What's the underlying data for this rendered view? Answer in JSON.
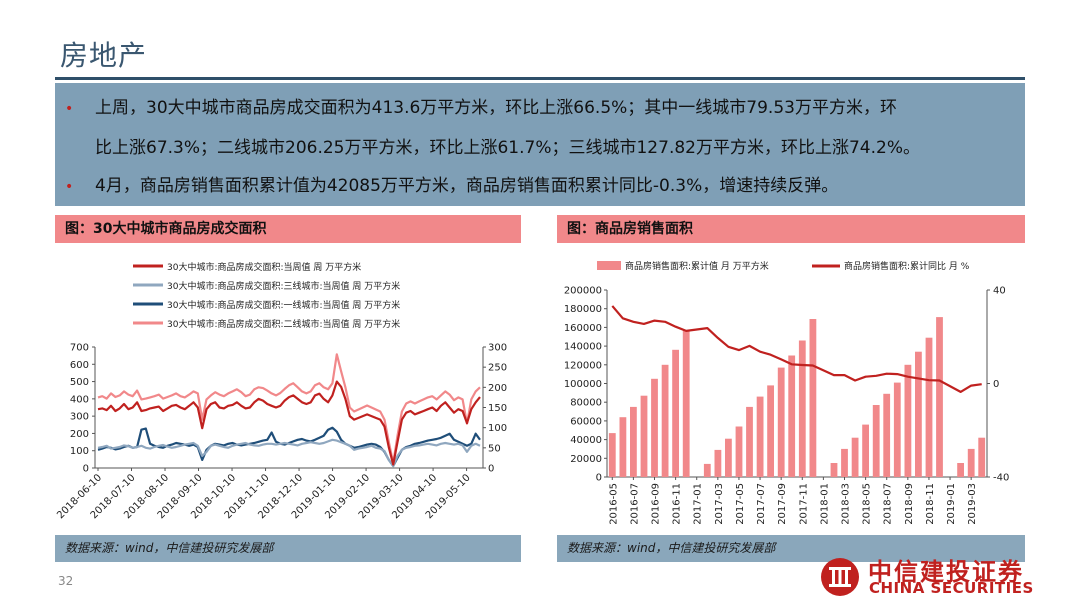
{
  "page": {
    "title": "房地产",
    "bullet1_line1": "上周，30大中城市商品房成交面积为413.6万平方米，环比上涨66.5%；其中一线城市79.53万平方米，环",
    "bullet1_line2": "比上涨67.3%；二线城市206.25万平方米，环比上涨61.7%；三线城市127.82万平方米，环比上涨74.2%。",
    "bullet2": "4月，商品房销售面积累计值为42085万平方米，商品房销售面积累计同比-0.3%，增速持续反弹。",
    "bullet_marker": "•",
    "page_number": "32",
    "logo_cn": "中信建投证券",
    "logo_en": "CHINA SECURITIES",
    "accent_color": "#c0211f"
  },
  "chart_data": [
    {
      "type": "line",
      "header": "图：30大中城市商品房成交面积",
      "source": "数据来源：wind，中信建投研究发展部",
      "x_tick_labels": [
        "2018-06-10",
        "2018-07-10",
        "2018-08-10",
        "2018-09-10",
        "2018-10-10",
        "2018-11-10",
        "2018-12-10",
        "2019-01-10",
        "2019-02-10",
        "2019-03-10",
        "2019-04-10",
        "2019-05-10"
      ],
      "left_axis": {
        "ylim": [
          0,
          700
        ],
        "ticks": [
          "0",
          "100",
          "200",
          "300",
          "400",
          "500",
          "600",
          "700"
        ]
      },
      "right_axis": {
        "ylim": [
          0,
          300
        ],
        "ticks": [
          "0",
          "50",
          "100",
          "150",
          "200",
          "250",
          "300"
        ]
      },
      "series": [
        {
          "name": "30大中城市:商品房成交面积:当周值 周 万平方米",
          "axis": "left",
          "color": "#c0211f",
          "values": [
            340,
            345,
            335,
            360,
            330,
            345,
            370,
            340,
            350,
            380,
            330,
            335,
            345,
            350,
            355,
            330,
            345,
            360,
            365,
            350,
            340,
            360,
            380,
            350,
            230,
            340,
            370,
            380,
            350,
            345,
            360,
            365,
            380,
            360,
            345,
            350,
            380,
            400,
            390,
            370,
            360,
            350,
            360,
            390,
            410,
            420,
            400,
            380,
            370,
            380,
            420,
            430,
            400,
            380,
            420,
            500,
            470,
            400,
            300,
            280,
            290,
            300,
            310,
            300,
            290,
            280,
            240,
            120,
            20,
            150,
            280,
            320,
            330,
            310,
            320,
            330,
            340,
            350,
            330,
            360,
            380,
            350,
            320,
            340,
            330,
            260,
            340,
            380,
            410
          ]
        },
        {
          "name": "30大中城市:商品房成交面积:三线城市:当周值 周 万平方米",
          "axis": "right",
          "color": "#8fa7bf",
          "values": [
            50,
            52,
            55,
            48,
            50,
            52,
            56,
            54,
            50,
            52,
            55,
            50,
            48,
            52,
            55,
            57,
            53,
            50,
            52,
            55,
            58,
            60,
            62,
            55,
            30,
            40,
            55,
            58,
            55,
            52,
            50,
            55,
            58,
            60,
            62,
            58,
            56,
            55,
            58,
            60,
            60,
            58,
            60,
            62,
            60,
            58,
            56,
            60,
            62,
            64,
            62,
            60,
            62,
            66,
            70,
            68,
            64,
            60,
            55,
            45,
            48,
            50,
            52,
            55,
            50,
            48,
            42,
            20,
            5,
            30,
            45,
            50,
            52,
            55,
            56,
            58,
            60,
            58,
            56,
            60,
            62,
            60,
            58,
            60,
            56,
            40,
            55,
            60,
            55
          ]
        },
        {
          "name": "30大中城市:商品房成交面积:一线城市:当周值 周 万平方米",
          "axis": "right",
          "color": "#1f4e79",
          "values": [
            45,
            48,
            52,
            50,
            46,
            48,
            52,
            55,
            50,
            52,
            95,
            98,
            60,
            55,
            52,
            50,
            55,
            58,
            62,
            60,
            58,
            55,
            58,
            52,
            20,
            45,
            55,
            60,
            58,
            56,
            60,
            62,
            58,
            56,
            58,
            60,
            62,
            65,
            68,
            70,
            88,
            65,
            60,
            58,
            62,
            66,
            70,
            72,
            68,
            66,
            70,
            75,
            80,
            95,
            100,
            90,
            70,
            60,
            55,
            50,
            52,
            55,
            58,
            60,
            58,
            52,
            40,
            20,
            5,
            25,
            45,
            52,
            55,
            60,
            62,
            65,
            68,
            70,
            72,
            75,
            80,
            85,
            70,
            65,
            60,
            55,
            60,
            85,
            70
          ]
        },
        {
          "name": "30大中城市:商品房成交面积:二线城市:当周值 周 万平方米",
          "axis": "right",
          "color": "#f1888a",
          "values": [
            175,
            178,
            172,
            185,
            176,
            180,
            190,
            182,
            178,
            192,
            170,
            172,
            175,
            178,
            182,
            172,
            176,
            180,
            185,
            178,
            175,
            182,
            190,
            185,
            120,
            170,
            180,
            188,
            182,
            178,
            185,
            190,
            195,
            188,
            178,
            182,
            195,
            200,
            198,
            192,
            185,
            180,
            186,
            196,
            205,
            210,
            200,
            190,
            185,
            190,
            205,
            210,
            200,
            195,
            210,
            282,
            240,
            200,
            150,
            140,
            145,
            150,
            155,
            150,
            145,
            140,
            120,
            65,
            12,
            80,
            140,
            160,
            165,
            160,
            165,
            170,
            175,
            178,
            170,
            180,
            190,
            182,
            168,
            175,
            170,
            110,
            170,
            190,
            200
          ]
        }
      ]
    },
    {
      "type": "bar",
      "header": "图：商品房销售面积",
      "source": "数据来源：wind，中信建投研究发展部",
      "categories": [
        "2016-05",
        "2016-06",
        "2016-07",
        "2016-08",
        "2016-09",
        "2016-10",
        "2016-11",
        "2016-12",
        "2017-01",
        "2017-02",
        "2017-03",
        "2017-04",
        "2017-05",
        "2017-06",
        "2017-07",
        "2017-08",
        "2017-09",
        "2017-10",
        "2017-11",
        "2017-12",
        "2018-01",
        "2018-02",
        "2018-03",
        "2018-04",
        "2018-05",
        "2018-06",
        "2018-07",
        "2018-08",
        "2018-09",
        "2018-10",
        "2018-11",
        "2018-12",
        "2019-01",
        "2019-02",
        "2019-03",
        "2019-04"
      ],
      "x_tick_labels": [
        "2016-05",
        "2016-07",
        "2016-09",
        "2016-11",
        "2017-01",
        "2017-03",
        "2017-05",
        "2017-07",
        "2017-09",
        "2017-11",
        "2018-01",
        "2018-03",
        "2018-05",
        "2018-07",
        "2018-09",
        "2018-11",
        "2019-01",
        "2019-03"
      ],
      "left_axis": {
        "ylim": [
          0,
          200000
        ],
        "ticks": [
          "0",
          "20000",
          "40000",
          "60000",
          "80000",
          "100000",
          "120000",
          "140000",
          "160000",
          "180000",
          "200000"
        ]
      },
      "right_axis": {
        "ylim": [
          -40,
          40
        ],
        "ticks": [
          "-40",
          "0",
          "40"
        ]
      },
      "series": [
        {
          "name": "商品房销售面积:累计值 月 万平方米",
          "axis": "left",
          "kind": "bar",
          "color": "#f1888a",
          "values": [
            47000,
            64000,
            75000,
            87000,
            105000,
            120000,
            136000,
            157000,
            null,
            14000,
            29000,
            41000,
            54000,
            75000,
            86000,
            98000,
            117000,
            130000,
            146000,
            169000,
            null,
            15000,
            30000,
            42000,
            56000,
            77000,
            89000,
            101000,
            120000,
            134000,
            149000,
            171000,
            null,
            15000,
            30000,
            42000
          ]
        },
        {
          "name": "商品房销售面积:累计同比 月 %",
          "axis": "right",
          "kind": "line",
          "color": "#c0211f",
          "values": [
            33.2,
            27.9,
            26.4,
            25.5,
            26.9,
            26.4,
            24.3,
            22.5,
            null,
            23.7,
            19.5,
            15.7,
            14.3,
            16.1,
            13.6,
            12.3,
            10.3,
            8.2,
            7.9,
            7.7,
            null,
            3.6,
            3.6,
            1.3,
            2.9,
            3.3,
            4.2,
            4.0,
            2.9,
            2.2,
            1.4,
            1.3,
            null,
            -3.6,
            -0.9,
            -0.3
          ]
        }
      ]
    }
  ]
}
